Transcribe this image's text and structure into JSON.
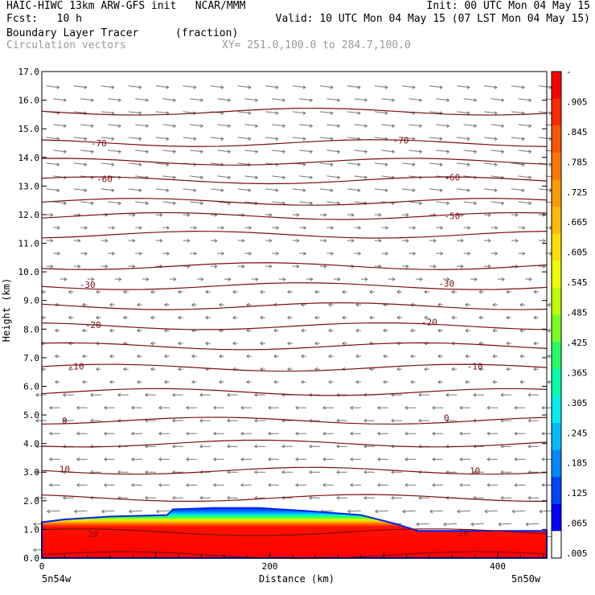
{
  "header": {
    "line1_left": "HAIC-HIWC 13km ARW-GFS init   NCAR/MMM",
    "line1_right": "Init: 00 UTC Mon 04 May 15",
    "line2_left": "Fcst:   10 h",
    "line2_right": "Valid: 10 UTC Mon 04 May 15 (07 LST Mon 04 May 15)",
    "line3_field": "Boundary Layer Tracer",
    "line3_units": "(fraction)",
    "line4_field": "Circulation vectors",
    "line4_xy": "XY= 251.0,100.0 to 284.7,100.0"
  },
  "chart_data": {
    "type": "heatmap",
    "title": "Boundary Layer Tracer",
    "units": "(fraction)",
    "xlabel": "Distance (km)",
    "ylabel": "Height (km)",
    "xlim": [
      0,
      443
    ],
    "ylim": [
      0,
      17
    ],
    "x_ticks": [
      0,
      200,
      400
    ],
    "y_ticks": [
      "0.0",
      "1.0",
      "2.0",
      "3.0",
      "4.0",
      "5.0",
      "6.0",
      "7.0",
      "8.0",
      "9.0",
      "10.0",
      "11.0",
      "12.0",
      "13.0",
      "14.0",
      "15.0",
      "16.0",
      "17.0"
    ],
    "x_start_label": "5n54w",
    "x_end_label": "5n50w",
    "colorbar": {
      "labels": [
        "-",
        ".905",
        ".845",
        ".785",
        ".725",
        ".665",
        ".605",
        ".545",
        ".485",
        ".425",
        ".365",
        ".305",
        ".245",
        ".185",
        ".125",
        ".065",
        ".005"
      ],
      "colors": [
        "#ff0000",
        "#ff2a00",
        "#ff5500",
        "#ff7700",
        "#ff9900",
        "#ffbb00",
        "#ffdd00",
        "#eeff00",
        "#bbff00",
        "#77ff22",
        "#22ff66",
        "#00ffaa",
        "#00eeee",
        "#00bbff",
        "#0088ff",
        "#0044ff",
        "#0000ff",
        "#ffffff"
      ]
    },
    "tracer_top_km": [
      {
        "x": 0,
        "top": 1.25
      },
      {
        "x": 20,
        "top": 1.35
      },
      {
        "x": 60,
        "top": 1.45
      },
      {
        "x": 110,
        "top": 1.5
      },
      {
        "x": 115,
        "top": 1.7
      },
      {
        "x": 150,
        "top": 1.75
      },
      {
        "x": 190,
        "top": 1.75
      },
      {
        "x": 230,
        "top": 1.65
      },
      {
        "x": 280,
        "top": 1.5
      },
      {
        "x": 310,
        "top": 1.2
      },
      {
        "x": 330,
        "top": 0.95
      },
      {
        "x": 380,
        "top": 0.95
      },
      {
        "x": 443,
        "top": 0.95
      }
    ],
    "contours": [
      {
        "level": "-70",
        "y": 14.5,
        "labels": [
          [
            50,
            14.5
          ],
          [
            315,
            14.6
          ]
        ]
      },
      {
        "level": "-60",
        "y": 13.2,
        "labels": [
          [
            55,
            13.25
          ],
          [
            360,
            13.3
          ]
        ]
      },
      {
        "level": "-50",
        "y": 11.95,
        "labels": [
          [
            360,
            11.95
          ]
        ]
      },
      {
        "level": "-30",
        "y": 9.5,
        "labels": [
          [
            40,
            9.55
          ],
          [
            355,
            9.6
          ]
        ]
      },
      {
        "level": "-20",
        "y": 8.1,
        "labels": [
          [
            45,
            8.15
          ],
          [
            340,
            8.25
          ]
        ]
      },
      {
        "level": "-10",
        "y": 6.65,
        "labels": [
          [
            30,
            6.7
          ],
          [
            380,
            6.7
          ]
        ]
      },
      {
        "level": "0",
        "y": 4.8,
        "labels": [
          [
            20,
            4.8
          ],
          [
            355,
            4.9
          ]
        ]
      },
      {
        "level": "10",
        "y": 3.05,
        "labels": [
          [
            20,
            3.1
          ],
          [
            380,
            3.05
          ]
        ]
      },
      {
        "level": "20",
        "y": 0.9,
        "labels": [
          [
            45,
            0.85
          ],
          [
            370,
            0.9
          ]
        ]
      }
    ],
    "extra_contour_km": [
      15.6,
      13.85,
      12.45,
      11.3,
      10.2,
      8.8,
      7.4,
      5.8,
      4.0,
      2.1,
      0.1
    ]
  }
}
